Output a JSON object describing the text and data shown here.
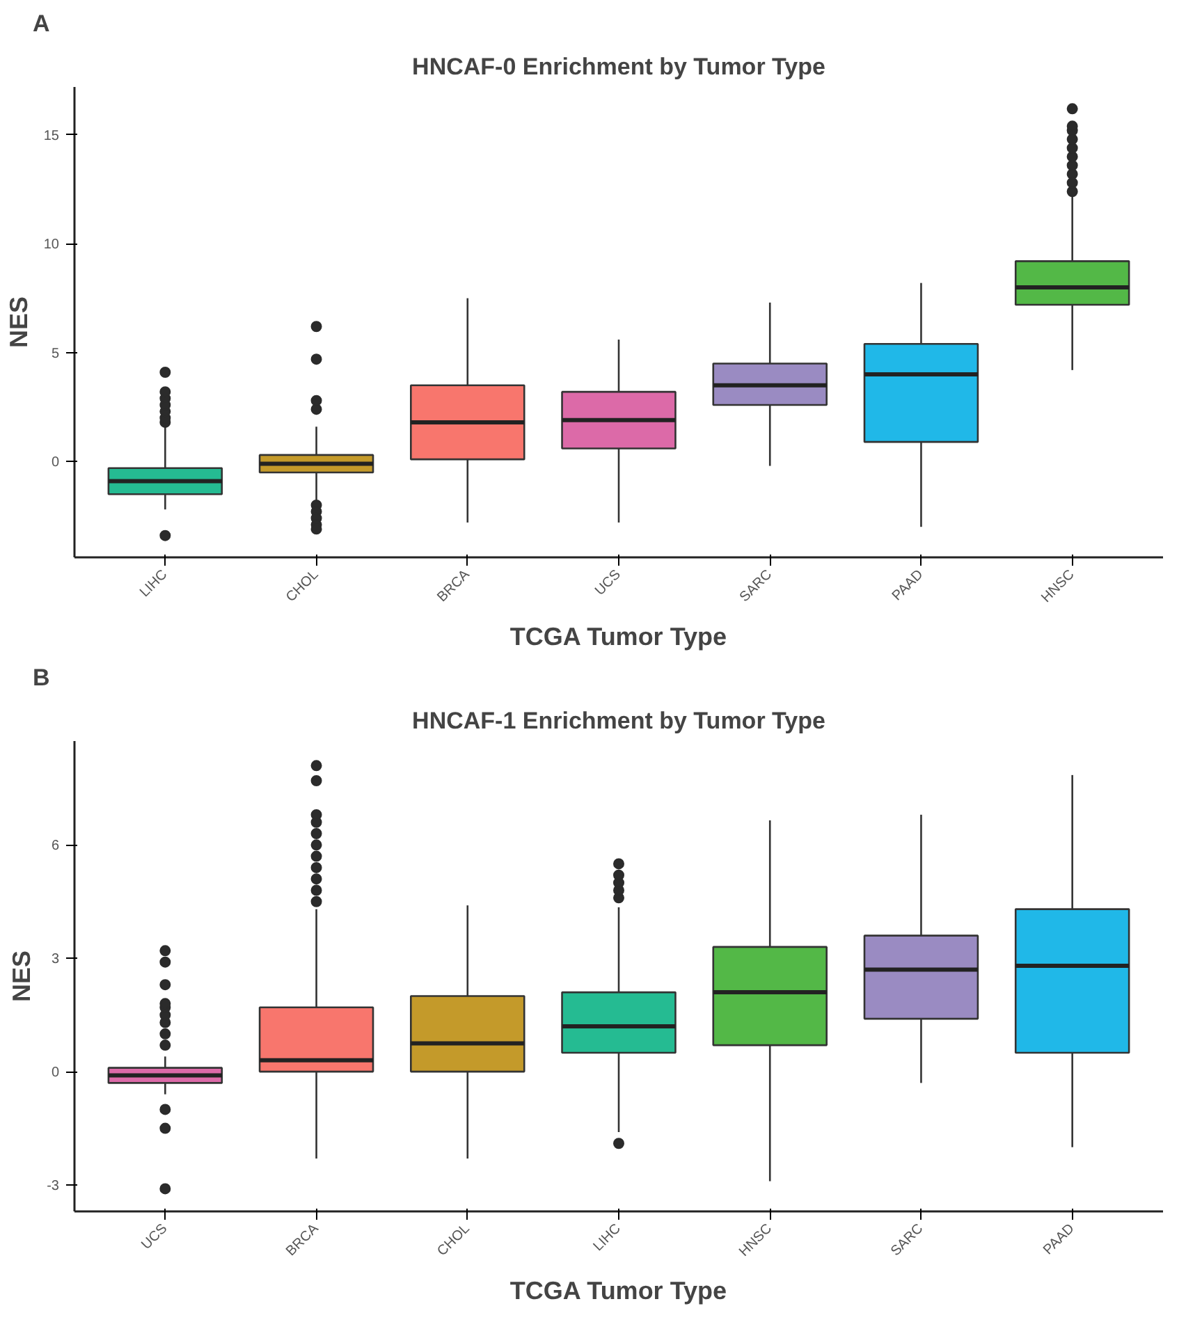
{
  "chart_data": [
    {
      "type": "box",
      "title": "HNCAF-0 Enrichment by Tumor Type",
      "xlabel": "TCGA Tumor Type",
      "ylabel": "NES",
      "annotations": [
        "A"
      ],
      "grid": false,
      "ylim": [
        -4.4,
        17.2
      ],
      "yticks": [
        0,
        5,
        10,
        15
      ],
      "categories": [
        "LIHC",
        "CHOL",
        "BRCA",
        "UCS",
        "SARC",
        "PAAD",
        "HNSC"
      ],
      "colors": [
        "#25bb92",
        "#c49a2a",
        "#f8766d",
        "#dc6aa8",
        "#9a8bc2",
        "#20b8e8",
        "#53b847"
      ],
      "boxes": [
        {
          "low": -2.2,
          "q1": -1.5,
          "median": -0.9,
          "q3": -0.3,
          "high": 1.7,
          "outliers": [
            1.8,
            2.0,
            2.3,
            2.6,
            2.9,
            3.2,
            4.1,
            -3.4
          ]
        },
        {
          "low": -1.8,
          "q1": -0.5,
          "median": -0.1,
          "q3": 0.3,
          "high": 1.6,
          "outliers": [
            6.2,
            4.7,
            2.8,
            2.4,
            -2.0,
            -2.3,
            -2.6,
            -2.9,
            -3.1
          ]
        },
        {
          "low": -2.8,
          "q1": 0.1,
          "median": 1.8,
          "q3": 3.5,
          "high": 7.5
        },
        {
          "low": -2.8,
          "q1": 0.6,
          "median": 1.9,
          "q3": 3.2,
          "high": 5.6
        },
        {
          "low": -0.2,
          "q1": 2.6,
          "median": 3.5,
          "q3": 4.5,
          "high": 7.3
        },
        {
          "low": -3.0,
          "q1": 0.9,
          "median": 4.0,
          "q3": 5.4,
          "high": 8.2
        },
        {
          "low": 4.2,
          "q1": 7.2,
          "median": 8.0,
          "q3": 9.2,
          "high": 12.2,
          "outliers": [
            12.4,
            12.8,
            13.2,
            13.6,
            14.0,
            14.4,
            14.8,
            15.2,
            15.4,
            16.2
          ]
        }
      ]
    },
    {
      "type": "box",
      "title": "HNCAF-1 Enrichment by Tumor Type",
      "xlabel": "TCGA Tumor Type",
      "ylabel": "NES",
      "annotations": [
        "B"
      ],
      "grid": false,
      "ylim": [
        -3.7,
        8.75
      ],
      "yticks": [
        -3,
        0,
        3,
        6
      ],
      "categories": [
        "UCS",
        "BRCA",
        "CHOL",
        "LIHC",
        "HNSC",
        "SARC",
        "PAAD"
      ],
      "colors": [
        "#dc6aa8",
        "#f8766d",
        "#c49a2a",
        "#25bb92",
        "#53b847",
        "#9a8bc2",
        "#20b8e8"
      ],
      "boxes": [
        {
          "low": -0.6,
          "q1": -0.3,
          "median": -0.1,
          "q3": 0.1,
          "high": 0.4,
          "outliers": [
            0.7,
            1.0,
            1.3,
            1.5,
            1.7,
            1.8,
            2.3,
            2.9,
            3.2,
            -1.0,
            -1.5,
            -3.1
          ]
        },
        {
          "low": -2.3,
          "q1": 0.0,
          "median": 0.3,
          "q3": 1.7,
          "high": 4.3,
          "outliers": [
            4.5,
            4.8,
            5.1,
            5.4,
            5.7,
            6.0,
            6.3,
            6.6,
            6.8,
            7.7,
            8.1
          ]
        },
        {
          "low": -2.3,
          "q1": 0.0,
          "median": 0.75,
          "q3": 2.0,
          "high": 4.4
        },
        {
          "low": -1.6,
          "q1": 0.5,
          "median": 1.2,
          "q3": 2.1,
          "high": 4.35,
          "outliers": [
            4.6,
            4.8,
            5.0,
            5.2,
            5.5,
            -1.9
          ]
        },
        {
          "low": -2.9,
          "q1": 0.7,
          "median": 2.1,
          "q3": 3.3,
          "high": 6.65
        },
        {
          "low": -0.3,
          "q1": 1.4,
          "median": 2.7,
          "q3": 3.6,
          "high": 6.8
        },
        {
          "low": -2.0,
          "q1": 0.5,
          "median": 2.8,
          "q3": 4.3,
          "high": 7.85
        }
      ]
    }
  ]
}
